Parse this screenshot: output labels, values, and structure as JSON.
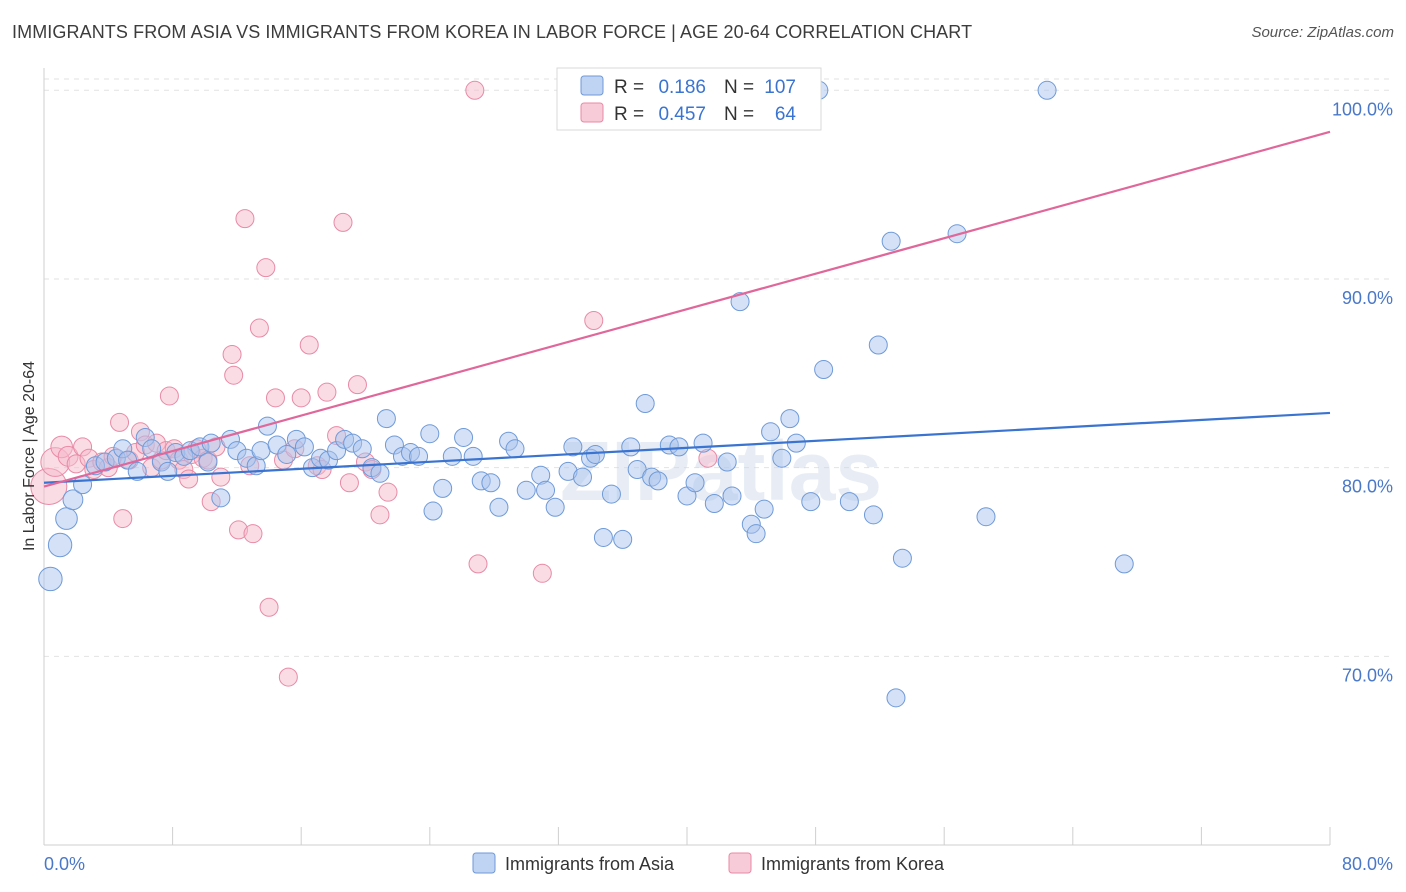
{
  "title": "IMMIGRANTS FROM ASIA VS IMMIGRANTS FROM KOREA IN LABOR FORCE | AGE 20-64 CORRELATION CHART",
  "source": "Source: ZipAtlas.com",
  "watermark": "ZIPatlas",
  "colors": {
    "asia_fill": "#a9c4ee",
    "asia_stroke": "#6f9ad8",
    "asia_line": "#3a74d0",
    "korea_fill": "#f5b9cb",
    "korea_stroke": "#e88aa6",
    "korea_line": "#e0679a",
    "tick_label": "#4a78c8",
    "grid": "#e2e2e2"
  },
  "legend": {
    "rows": [
      {
        "r_label": "R =",
        "r_value": "0.186",
        "n_label": "N =",
        "n_value": "107"
      },
      {
        "r_label": "R =",
        "r_value": "0.457",
        "n_label": "N =",
        "n_value": "64"
      }
    ]
  },
  "chart_data": {
    "type": "scatter",
    "title": "IMMIGRANTS FROM ASIA VS IMMIGRANTS FROM KOREA IN LABOR FORCE | AGE 20-64 CORRELATION CHART",
    "xlabel": "",
    "ylabel": "In Labor Force | Age 20-64",
    "xlim": [
      0,
      80
    ],
    "ylim": [
      60,
      101.5
    ],
    "x_tick_labels": [
      "0.0%",
      "80.0%"
    ],
    "y_ticks": [
      70,
      80,
      90,
      100
    ],
    "y_tick_labels": [
      "70.0%",
      "80.0%",
      "90.0%",
      "100.0%"
    ],
    "grid": true,
    "legend_position": "top-center",
    "series": [
      {
        "name": "Immigrants from Asia",
        "r": 0.186,
        "n": 107,
        "trend": {
          "x": [
            0,
            80
          ],
          "y": [
            79.2,
            82.9
          ]
        },
        "points": [
          [
            0.4,
            74.1,
            1.3
          ],
          [
            1.0,
            75.9,
            1.3
          ],
          [
            1.4,
            77.3,
            1.2
          ],
          [
            1.8,
            78.3,
            1.1
          ],
          [
            2.4,
            79.1,
            1.0
          ],
          [
            3.2,
            80.1,
            1.0
          ],
          [
            3.8,
            80.3,
            1.0
          ],
          [
            4.5,
            80.5,
            1.0
          ],
          [
            4.9,
            81.0,
            1.0
          ],
          [
            5.2,
            80.4,
            1.0
          ],
          [
            5.8,
            79.8,
            1.0
          ],
          [
            6.3,
            81.6,
            1.0
          ],
          [
            6.7,
            81.0,
            1.0
          ],
          [
            7.3,
            80.3,
            1.0
          ],
          [
            7.7,
            79.8,
            1.0
          ],
          [
            8.2,
            80.8,
            1.0
          ],
          [
            8.7,
            80.6,
            1.0
          ],
          [
            9.1,
            80.9,
            1.0
          ],
          [
            9.7,
            81.1,
            1.0
          ],
          [
            10.2,
            80.3,
            1.0
          ],
          [
            10.4,
            81.3,
            1.0
          ],
          [
            11.0,
            78.4,
            1.0
          ],
          [
            11.6,
            81.5,
            1.0
          ],
          [
            12.0,
            80.9,
            1.0
          ],
          [
            12.6,
            80.5,
            1.0
          ],
          [
            13.2,
            80.1,
            1.0
          ],
          [
            13.5,
            80.9,
            1.0
          ],
          [
            13.9,
            82.2,
            1.0
          ],
          [
            14.5,
            81.2,
            1.0
          ],
          [
            15.1,
            80.7,
            1.0
          ],
          [
            15.7,
            81.5,
            1.0
          ],
          [
            16.2,
            81.1,
            1.0
          ],
          [
            16.7,
            80.0,
            1.0
          ],
          [
            17.2,
            80.5,
            1.0
          ],
          [
            17.7,
            80.4,
            1.0
          ],
          [
            18.2,
            80.9,
            1.0
          ],
          [
            18.7,
            81.5,
            1.0
          ],
          [
            19.2,
            81.3,
            1.0
          ],
          [
            19.8,
            81.0,
            1.0
          ],
          [
            20.4,
            80.0,
            1.0
          ],
          [
            20.9,
            79.7,
            1.0
          ],
          [
            21.3,
            82.6,
            1.0
          ],
          [
            21.8,
            81.2,
            1.0
          ],
          [
            22.3,
            80.6,
            1.0
          ],
          [
            22.8,
            80.8,
            1.0
          ],
          [
            23.3,
            80.6,
            1.0
          ],
          [
            24.0,
            81.8,
            1.0
          ],
          [
            24.2,
            77.7,
            1.0
          ],
          [
            24.8,
            78.9,
            1.0
          ],
          [
            25.4,
            80.6,
            1.0
          ],
          [
            26.1,
            81.6,
            1.0
          ],
          [
            26.7,
            80.6,
            1.0
          ],
          [
            27.2,
            79.3,
            1.0
          ],
          [
            27.8,
            79.2,
            1.0
          ],
          [
            28.3,
            77.9,
            1.0
          ],
          [
            28.9,
            81.4,
            1.0
          ],
          [
            29.3,
            81.0,
            1.0
          ],
          [
            30.0,
            78.8,
            1.0
          ],
          [
            30.9,
            79.6,
            1.0
          ],
          [
            31.2,
            78.8,
            1.0
          ],
          [
            31.8,
            77.9,
            1.0
          ],
          [
            32.6,
            79.8,
            1.0
          ],
          [
            32.9,
            81.1,
            1.0
          ],
          [
            33.5,
            79.5,
            1.0
          ],
          [
            34.0,
            80.5,
            1.0
          ],
          [
            34.3,
            80.7,
            1.0
          ],
          [
            34.8,
            76.3,
            1.0
          ],
          [
            35.3,
            78.6,
            1.0
          ],
          [
            36.0,
            76.2,
            1.0
          ],
          [
            36.5,
            81.1,
            1.0
          ],
          [
            36.9,
            79.9,
            1.0
          ],
          [
            37.4,
            83.4,
            1.0
          ],
          [
            37.8,
            79.5,
            1.0
          ],
          [
            38.2,
            79.3,
            1.0
          ],
          [
            38.9,
            81.2,
            1.0
          ],
          [
            39.5,
            81.1,
            1.0
          ],
          [
            40.0,
            78.5,
            1.0
          ],
          [
            40.5,
            79.2,
            1.0
          ],
          [
            41.0,
            81.3,
            1.0
          ],
          [
            41.7,
            78.1,
            1.0
          ],
          [
            42.5,
            80.3,
            1.0
          ],
          [
            42.8,
            78.5,
            1.0
          ],
          [
            43.3,
            88.8,
            1.0
          ],
          [
            44.0,
            77.0,
            1.0
          ],
          [
            44.3,
            76.5,
            1.0
          ],
          [
            44.8,
            77.8,
            1.0
          ],
          [
            45.2,
            81.9,
            1.0
          ],
          [
            45.9,
            80.5,
            1.0
          ],
          [
            46.4,
            82.6,
            1.0
          ],
          [
            46.8,
            81.3,
            1.0
          ],
          [
            47.7,
            78.2,
            1.0
          ],
          [
            48.5,
            85.2,
            1.0
          ],
          [
            50.1,
            78.2,
            1.0
          ],
          [
            51.6,
            77.5,
            1.0
          ],
          [
            51.9,
            86.5,
            1.0
          ],
          [
            52.7,
            92.0,
            1.0
          ],
          [
            53.4,
            75.2,
            1.0
          ],
          [
            53.0,
            67.8,
            1.0
          ],
          [
            56.8,
            92.4,
            1.0
          ],
          [
            58.6,
            77.4,
            1.0
          ],
          [
            62.4,
            100.0,
            1.0
          ],
          [
            67.2,
            74.9,
            1.0
          ],
          [
            48.2,
            100.0,
            1.0
          ]
        ]
      },
      {
        "name": "Immigrants from Korea",
        "r": 0.457,
        "n": 64,
        "trend": {
          "x": [
            0,
            80
          ],
          "y": [
            79.0,
            97.8
          ]
        },
        "points": [
          [
            0.3,
            79.0,
            2.0
          ],
          [
            0.7,
            80.3,
            1.6
          ],
          [
            1.1,
            81.1,
            1.2
          ],
          [
            1.5,
            80.6,
            1.1
          ],
          [
            2.0,
            80.2,
            1.0
          ],
          [
            2.4,
            81.1,
            1.0
          ],
          [
            2.8,
            80.5,
            1.0
          ],
          [
            3.1,
            79.9,
            1.0
          ],
          [
            3.6,
            80.3,
            1.0
          ],
          [
            4.0,
            80.0,
            1.0
          ],
          [
            4.3,
            80.6,
            1.0
          ],
          [
            4.7,
            82.4,
            1.0
          ],
          [
            4.9,
            77.3,
            1.0
          ],
          [
            5.3,
            80.4,
            1.0
          ],
          [
            5.7,
            80.8,
            1.0
          ],
          [
            6.0,
            81.9,
            1.0
          ],
          [
            6.3,
            81.2,
            1.0
          ],
          [
            6.7,
            80.0,
            1.0
          ],
          [
            7.0,
            81.3,
            1.0
          ],
          [
            7.3,
            80.4,
            1.0
          ],
          [
            7.6,
            80.9,
            1.0
          ],
          [
            7.8,
            83.8,
            1.0
          ],
          [
            8.1,
            81.0,
            1.0
          ],
          [
            8.4,
            80.4,
            1.0
          ],
          [
            8.7,
            79.9,
            1.0
          ],
          [
            9.0,
            79.4,
            1.0
          ],
          [
            9.2,
            80.7,
            1.0
          ],
          [
            9.5,
            81.0,
            1.0
          ],
          [
            9.9,
            80.5,
            1.0
          ],
          [
            10.2,
            80.4,
            1.0
          ],
          [
            10.4,
            78.2,
            1.0
          ],
          [
            10.7,
            81.1,
            1.0
          ],
          [
            11.0,
            79.5,
            1.0
          ],
          [
            11.7,
            86.0,
            1.0
          ],
          [
            11.8,
            84.9,
            1.0
          ],
          [
            12.1,
            76.7,
            1.0
          ],
          [
            12.5,
            93.2,
            1.0
          ],
          [
            12.8,
            80.1,
            1.0
          ],
          [
            13.0,
            76.5,
            1.0
          ],
          [
            13.4,
            87.4,
            1.0
          ],
          [
            13.8,
            90.6,
            1.0
          ],
          [
            14.0,
            72.6,
            1.0
          ],
          [
            14.4,
            83.7,
            1.0
          ],
          [
            14.9,
            80.4,
            1.0
          ],
          [
            15.2,
            68.9,
            1.0
          ],
          [
            15.6,
            81.0,
            1.0
          ],
          [
            16.0,
            83.7,
            1.0
          ],
          [
            16.5,
            86.5,
            1.0
          ],
          [
            17.0,
            80.1,
            1.0
          ],
          [
            17.3,
            79.9,
            1.0
          ],
          [
            17.6,
            84.0,
            1.0
          ],
          [
            18.2,
            81.7,
            1.0
          ],
          [
            18.6,
            93.0,
            1.0
          ],
          [
            19.0,
            79.2,
            1.0
          ],
          [
            19.5,
            84.4,
            1.0
          ],
          [
            20.0,
            80.3,
            1.0
          ],
          [
            20.4,
            79.9,
            1.0
          ],
          [
            20.9,
            77.5,
            1.0
          ],
          [
            21.4,
            78.7,
            1.0
          ],
          [
            26.8,
            100.0,
            1.0
          ],
          [
            27.0,
            74.9,
            1.0
          ],
          [
            31.0,
            74.4,
            1.0
          ],
          [
            34.2,
            87.8,
            1.0
          ],
          [
            41.3,
            80.5,
            1.0
          ]
        ]
      }
    ]
  },
  "bottom_legend": [
    "Immigrants from Asia",
    "Immigrants from Korea"
  ]
}
